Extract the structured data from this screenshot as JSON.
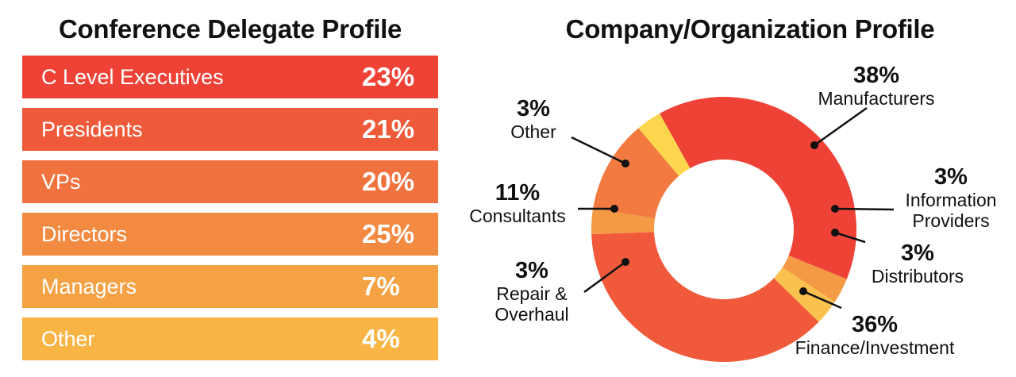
{
  "chart_data": [
    {
      "type": "bar",
      "title": "Conference Delegate Profile",
      "categories": [
        "C Level Executives",
        "Presidents",
        "VPs",
        "Directors",
        "Managers",
        "Other"
      ],
      "values": [
        23,
        21,
        20,
        25,
        7,
        4
      ],
      "value_labels": [
        "23%",
        "21%",
        "20%",
        "25%",
        "7%",
        "4%"
      ],
      "colors": [
        "#EE4237",
        "#EF5A3A",
        "#F0723E",
        "#F28A42",
        "#F5A245",
        "#F8B444"
      ]
    },
    {
      "type": "pie",
      "title": "Company/Organization Profile",
      "slices": [
        {
          "name": "Manufacturers",
          "value": 38,
          "label": "38%",
          "name_lines": [
            "Manufacturers"
          ],
          "color": "#EE4237"
        },
        {
          "name": "Information Providers",
          "value": 3,
          "label": "3%",
          "name_lines": [
            "Information",
            "Providers"
          ],
          "color": "#F49A45"
        },
        {
          "name": "Distributors",
          "value": 3,
          "label": "3%",
          "name_lines": [
            "Distributors"
          ],
          "color": "#FBC14F"
        },
        {
          "name": "Finance/Investment",
          "value": 36,
          "label": "36%",
          "name_lines": [
            "Finance/Investment"
          ],
          "color": "#F05A3B"
        },
        {
          "name": "Repair & Overhaul",
          "value": 3,
          "label": "3%",
          "name_lines": [
            "Repair &",
            "Overhaul"
          ],
          "color": "#F49A45"
        },
        {
          "name": "Consultants",
          "value": 11,
          "label": "11%",
          "name_lines": [
            "Consultants"
          ],
          "color": "#F27A40"
        },
        {
          "name": "Other",
          "value": 3,
          "label": "3%",
          "name_lines": [
            "Other"
          ],
          "color": "#FDD64E"
        }
      ]
    }
  ]
}
